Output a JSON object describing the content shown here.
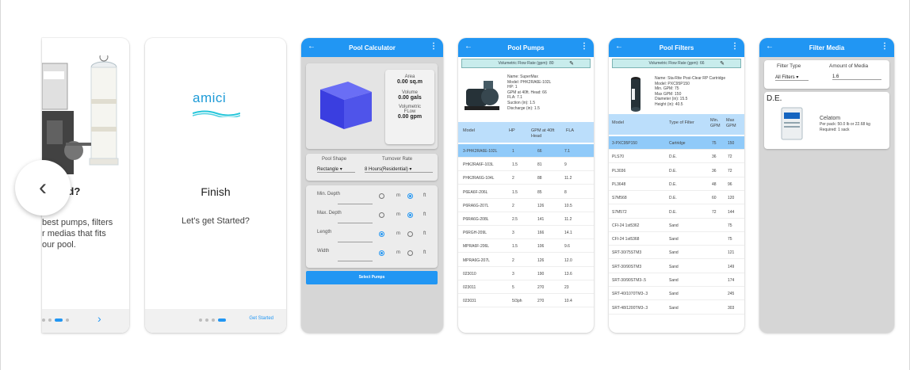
{
  "nav": {
    "prev_glyph": "‹"
  },
  "colors": {
    "primary": "#2196f3",
    "header_blue": "#bbdefb",
    "selected_row": "#90caf9",
    "flow_bar": "#c8ecec"
  },
  "onboarding1": {
    "title": "need?",
    "desc_lines": [
      "best pumps, filters",
      "r medias that fits",
      "our pool."
    ],
    "next_glyph": "›"
  },
  "onboarding2": {
    "logo": "amici",
    "title": "Finish",
    "subtitle": "Let's get Started?",
    "get_started": "Get Started"
  },
  "calculator": {
    "title": "Pool Calculator",
    "back": "←",
    "more": "⋮",
    "area_label": "Area",
    "area_value": "0.00 sq.m",
    "volume_label": "Volume",
    "volume_value": "0.00 gals",
    "flow_label_1": "Volumetric",
    "flow_label_2": "FLow",
    "flow_value": "0.00 gpm",
    "pool_shape_label": "Pool Shape",
    "pool_shape_value": "Rectangle",
    "turnover_label": "Turnover Rate",
    "turnover_value": "8 Hours(Residential)",
    "rows": [
      {
        "label": "Min. Depth",
        "u1": "m",
        "u2": "ft"
      },
      {
        "label": "Max. Depth",
        "u1": "m",
        "u2": "ft"
      },
      {
        "label": "Length",
        "u1": "m",
        "u2": "ft"
      },
      {
        "label": "Width",
        "u1": "m",
        "u2": "ft"
      }
    ],
    "select_button": "Select Pumps"
  },
  "pumps": {
    "title": "Pool Pumps",
    "back": "←",
    "more": "⋮",
    "flow_rate": "Volumetric Flow Rate (gpm): 80",
    "edit_icon": "✎",
    "info": [
      "Name: SuperMax",
      "Model: PHK2RA6E-102L",
      "HP: 1",
      "GPM at 40ft. Head: 66",
      "FLA: 7.1",
      "Suction (in): 1.5",
      "Discharge (in): 1.5"
    ],
    "headers": [
      "Model",
      "HP",
      "GPM at 40ft Head",
      "FLA"
    ],
    "rows": [
      [
        "3-PHK2RA6E-102L",
        "1",
        "66",
        "7.1"
      ],
      [
        "PHK2RA6F-103L",
        "1.5",
        "81",
        "9"
      ],
      [
        "PHK2RA6G-104L",
        "2",
        "88",
        "11.2"
      ],
      [
        "P6EA6F-206L",
        "1.5",
        "85",
        "8"
      ],
      [
        "P6RA6G-207L",
        "2",
        "126",
        "10.5"
      ],
      [
        "P6RA6G-208L",
        "2.5",
        "141",
        "11.2"
      ],
      [
        "P6RGH-209L",
        "3",
        "166",
        "14.1"
      ],
      [
        "MPRA6F-206L",
        "1.5",
        "106",
        "9.6"
      ],
      [
        "MPRA6G-207L",
        "2",
        "126",
        "12.0"
      ],
      [
        "023010",
        "3",
        "190",
        "13.6"
      ],
      [
        "023011",
        "5",
        "270",
        "23"
      ],
      [
        "023031",
        "5/3ph",
        "270",
        "10.4"
      ]
    ]
  },
  "filters": {
    "title": "Pool Filters",
    "back": "←",
    "more": "⋮",
    "flow_rate": "Volumetric Flow Rate (gpm): 66",
    "edit_icon": "✎",
    "info": [
      "Name: Sta-Rite Posi-Clear RP Cartridge",
      "Model: PXC95P150",
      "Min. GPM: 75",
      "Max GPM: 150",
      "Diameter (in): 15.5",
      "Height (in): 40.5"
    ],
    "headers": [
      "Model",
      "Type of Filter",
      "Min. GPM",
      "Max GPM"
    ],
    "rows": [
      [
        "3-PXC95P150",
        "Cartridge",
        "75",
        "150"
      ],
      [
        "PLS70",
        "D.E.",
        "36",
        "72"
      ],
      [
        "PL3036",
        "D.E.",
        "36",
        "72"
      ],
      [
        "PL3648",
        "D.E.",
        "48",
        "96"
      ],
      [
        "S7M568",
        "D.E.",
        "60",
        "120"
      ],
      [
        "S7M572",
        "D.E.",
        "72",
        "144"
      ],
      [
        "CFI-24 1st5362",
        "Sand",
        "",
        "75"
      ],
      [
        "CFI-24 1st5368",
        "Sand",
        "",
        "75"
      ],
      [
        "SRT-30/75STM3",
        "Sand",
        "",
        "121"
      ],
      [
        "SRT-30/90STM3",
        "Sand",
        "",
        "149"
      ],
      [
        "SRT-30/90STM3-.5",
        "Sand",
        "",
        "174"
      ],
      [
        "SRT-40/1070TM3-.3",
        "Sand",
        "",
        "245"
      ],
      [
        "SRT-48/1200TM3-.3",
        "Sand",
        "",
        "303"
      ]
    ]
  },
  "media": {
    "title": "Filter Media",
    "back": "←",
    "more": "⋮",
    "filter_type_label": "Filter Type",
    "filter_type_value": "All Filters",
    "amount_label": "Amount of Media",
    "amount_value": "1.6",
    "section": "D.E.",
    "product_name": "Celatom",
    "product_line1": "Per pack: 50.0 lb or 22.68 kg",
    "product_line2": "Required: 1 sack"
  }
}
